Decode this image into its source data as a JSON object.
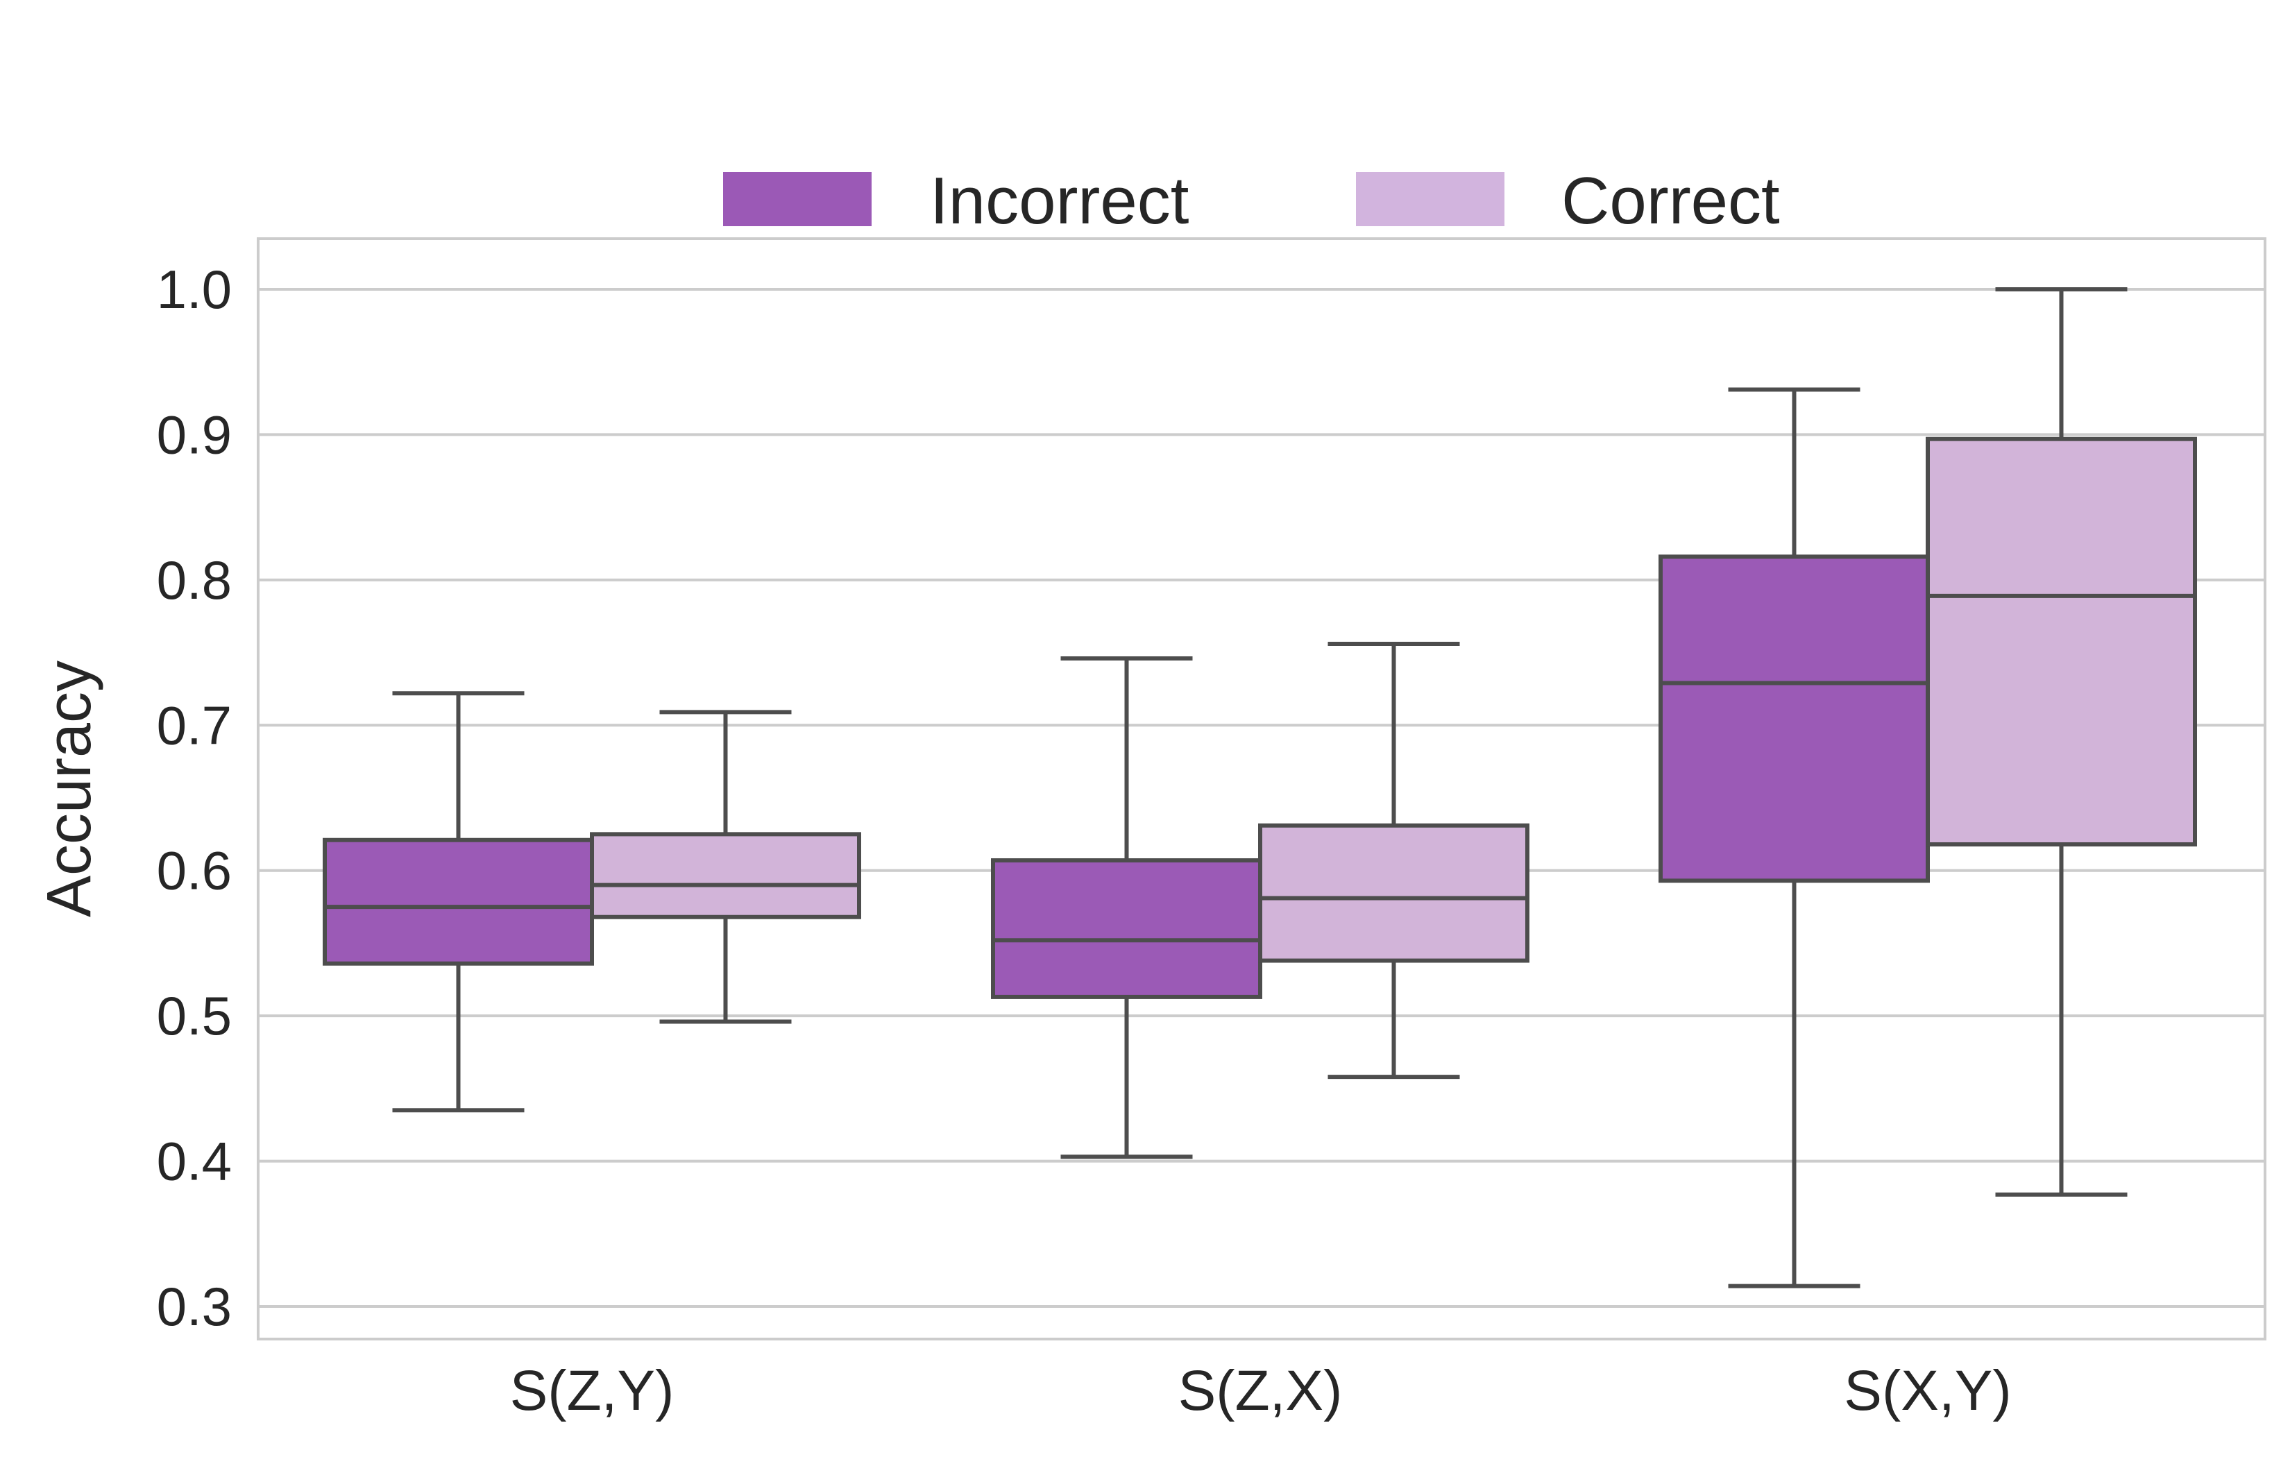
{
  "chart_data": {
    "type": "box",
    "title": "",
    "xlabel": "",
    "ylabel": "Accuracy",
    "ylim": [
      0.28,
      1.035
    ],
    "yticks": [
      0.3,
      0.4,
      0.5,
      0.6,
      0.7,
      0.8,
      0.9,
      1.0
    ],
    "ytick_labels": [
      "0.3",
      "0.4",
      "0.5",
      "0.6",
      "0.7",
      "0.8",
      "0.9",
      "1.0"
    ],
    "grid": true,
    "legend_position": "top-center",
    "categories": [
      "S(Z,Y)",
      "S(Z,X)",
      "S(X,Y)"
    ],
    "series": [
      {
        "name": "Incorrect",
        "color": "#9b5ab6",
        "legend_color": "#9b59b6",
        "boxes": [
          {
            "whisker_low": 0.435,
            "q1": 0.536,
            "median": 0.575,
            "q3": 0.621,
            "whisker_high": 0.722
          },
          {
            "whisker_low": 0.403,
            "q1": 0.513,
            "median": 0.552,
            "q3": 0.607,
            "whisker_high": 0.746
          },
          {
            "whisker_low": 0.314,
            "q1": 0.593,
            "median": 0.729,
            "q3": 0.816,
            "whisker_high": 0.931
          }
        ]
      },
      {
        "name": "Correct",
        "color": "#d2b4d9",
        "legend_color": "#d2b4de",
        "boxes": [
          {
            "whisker_low": 0.496,
            "q1": 0.568,
            "median": 0.59,
            "q3": 0.625,
            "whisker_high": 0.709
          },
          {
            "whisker_low": 0.458,
            "q1": 0.538,
            "median": 0.581,
            "q3": 0.631,
            "whisker_high": 0.756
          },
          {
            "whisker_low": 0.377,
            "q1": 0.618,
            "median": 0.789,
            "q3": 0.897,
            "whisker_high": 1.0
          }
        ]
      }
    ],
    "styles": {
      "line_color": "#4d4d4d",
      "grid_color": "#cccccc",
      "frame_color": "#cccccc"
    }
  }
}
